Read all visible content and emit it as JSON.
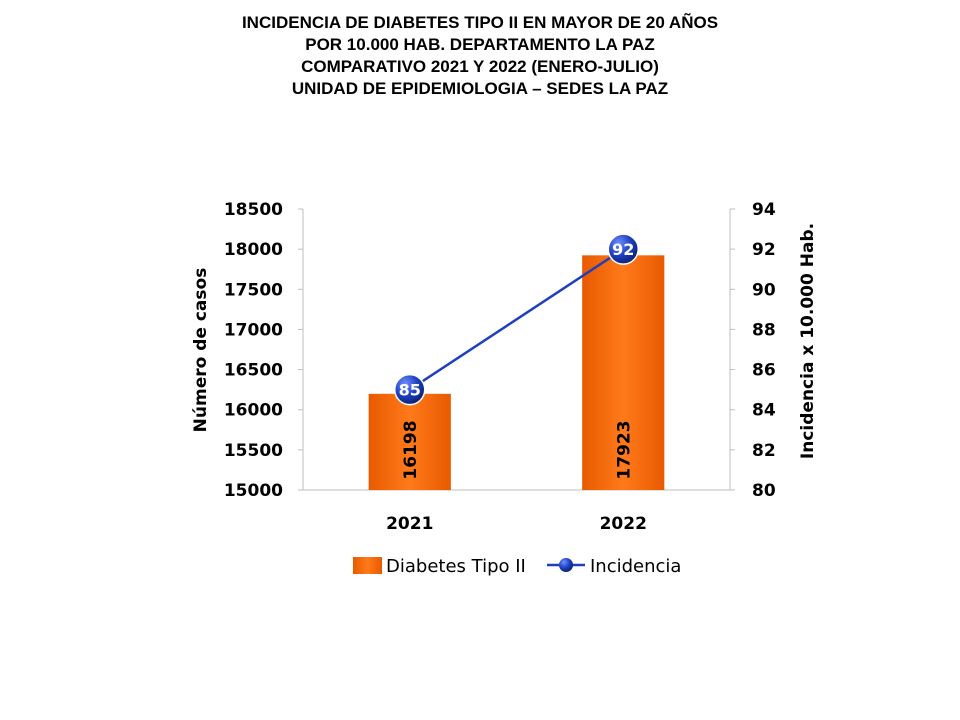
{
  "title_lines": [
    "INCIDENCIA DE DIABETES TIPO II  EN MAYOR DE 20 AÑOS",
    "POR 10.000 HAB. DEPARTAMENTO LA PAZ",
    "COMPARATIVO 2021 Y 2022 (ENERO-JULIO)",
    "UNIDAD DE EPIDEMIOLOGIA – SEDES LA PAZ"
  ],
  "chart_data": {
    "type": "bar",
    "categories": [
      "2021",
      "2022"
    ],
    "series": [
      {
        "name": "Diabetes Tipo II",
        "type": "bar",
        "axis": "left",
        "values": [
          16198,
          17923
        ],
        "color": "#FF6A00"
      },
      {
        "name": "Incidencia",
        "type": "line",
        "axis": "right",
        "values": [
          85,
          92
        ],
        "color": "#1F3FBF"
      }
    ],
    "ylabel": "Número de casos",
    "y2label": "Incidencia x 10.000 Hab.",
    "ylim": [
      15000,
      18500
    ],
    "ystep": 500,
    "y2lim": [
      80,
      94
    ],
    "y2step": 2,
    "grid": false,
    "legend_position": "bottom"
  }
}
